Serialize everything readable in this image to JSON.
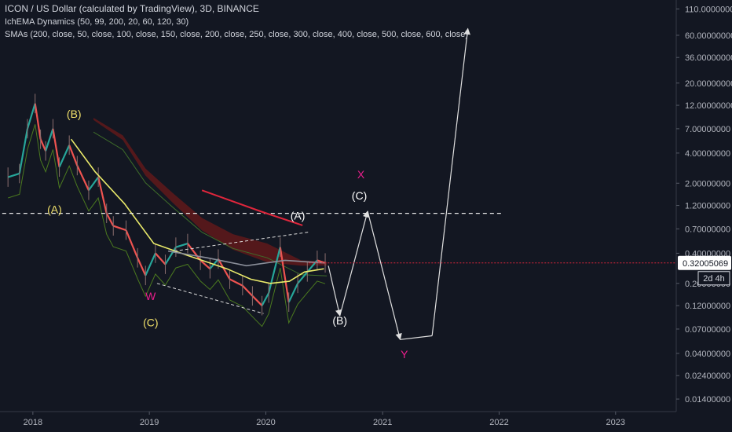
{
  "header": {
    "symbol_line": "ICON / US Dollar (calculated by TradingView), 3D, BINANCE",
    "indicator_1": "IchEMA Dynamics (50, 99, 200, 20, 60, 120, 30)",
    "indicator_2": "SMAs (200, close, 50, close, 100, close, 150, close, 200, close, 250, close, 300, close, 400, close, 500, close, 600, close)"
  },
  "price_tag": {
    "value": "0.32005069",
    "countdown": "2d 4h"
  },
  "colors": {
    "background": "#131722",
    "axis_text": "#b2b5be",
    "candle_up": "#26a69a",
    "candle_down": "#ef5350",
    "sma_yellow": "#e6e65a",
    "cloud_red": "#6b1a1a",
    "label_yellow": "#f0e06a",
    "label_magenta": "#e91e8c",
    "label_white": "#ffffff"
  },
  "chart_data": {
    "type": "line",
    "scale": "log",
    "ylim": [
      0.0105,
      135
    ],
    "xlim": [
      "2017-09-20",
      "2023-07-10"
    ],
    "y_ticks": [
      "0.01400000",
      "0.02400000",
      "0.04000000",
      "0.07000000",
      "0.12000000",
      "0.20000000",
      "0.40000000",
      "0.70000000",
      "1.20000000",
      "2.00000000",
      "4.00000000",
      "7.00000000",
      "12.00000000",
      "20.00000000",
      "36.00000000",
      "60.00000000",
      "110.00000000"
    ],
    "x_ticks": [
      "2018",
      "2019",
      "2020",
      "2021",
      "2022",
      "2023"
    ],
    "x_tick_dates": [
      "2018-01-01",
      "2019-01-01",
      "2020-01-01",
      "2021-01-01",
      "2022-01-01",
      "2023-01-01"
    ],
    "horizontal_level": {
      "value": 1.0,
      "x_from": "2017-09-27",
      "x_to": "2022-01-10",
      "style": "dashed"
    },
    "series": [
      {
        "color": "#eaea6a",
        "points": [
          [
            "2018-05-01",
            5.5
          ],
          [
            "2018-07-15",
            2.6
          ],
          [
            "2018-10-15",
            1.25
          ],
          [
            "2019-01-15",
            0.5
          ],
          [
            "2019-05-01",
            0.38
          ],
          [
            "2019-09-01",
            0.28
          ],
          [
            "2019-11-15",
            0.22
          ],
          [
            "2020-01-15",
            0.2
          ],
          [
            "2020-03-15",
            0.21
          ],
          [
            "2020-05-01",
            0.26
          ],
          [
            "2020-07-01",
            0.28
          ]
        ]
      },
      {
        "color": "#8a8e99",
        "points": [
          [
            "2019-03-01",
            0.42
          ],
          [
            "2019-07-01",
            0.36
          ],
          [
            "2019-11-01",
            0.3
          ],
          [
            "2020-03-01",
            0.34
          ],
          [
            "2020-07-01",
            0.32
          ]
        ]
      }
    ],
    "price_path": [
      [
        "2017-10-15",
        2.3
      ],
      [
        "2017-11-20",
        2.5
      ],
      [
        "2017-12-15",
        7
      ],
      [
        "2018-01-08",
        12.5
      ],
      [
        "2018-01-25",
        5.5
      ],
      [
        "2018-02-10",
        4.2
      ],
      [
        "2018-03-05",
        7
      ],
      [
        "2018-03-25",
        2.9
      ],
      [
        "2018-04-25",
        4.8
      ],
      [
        "2018-05-20",
        3.0
      ],
      [
        "2018-06-25",
        1.7
      ],
      [
        "2018-07-25",
        2.3
      ],
      [
        "2018-08-20",
        1.0
      ],
      [
        "2018-09-10",
        0.75
      ],
      [
        "2018-10-20",
        0.68
      ],
      [
        "2018-11-25",
        0.36
      ],
      [
        "2018-12-20",
        0.24
      ],
      [
        "2019-01-20",
        0.4
      ],
      [
        "2019-02-20",
        0.31
      ],
      [
        "2019-03-25",
        0.46
      ],
      [
        "2019-05-01",
        0.5
      ],
      [
        "2019-06-10",
        0.34
      ],
      [
        "2019-07-10",
        0.28
      ],
      [
        "2019-08-05",
        0.35
      ],
      [
        "2019-09-10",
        0.22
      ],
      [
        "2019-10-20",
        0.19
      ],
      [
        "2019-11-20",
        0.15
      ],
      [
        "2019-12-20",
        0.12
      ],
      [
        "2020-01-10",
        0.16
      ],
      [
        "2020-02-15",
        0.46
      ],
      [
        "2020-03-13",
        0.13
      ],
      [
        "2020-04-10",
        0.2
      ],
      [
        "2020-05-10",
        0.26
      ],
      [
        "2020-06-10",
        0.34
      ],
      [
        "2020-07-05",
        0.32
      ]
    ],
    "cloud": [
      [
        "2018-07-10",
        9
      ],
      [
        "2018-10-10",
        6
      ],
      [
        "2018-12-20",
        2.8
      ],
      [
        "2019-03-15",
        1.6
      ],
      [
        "2019-06-15",
        0.9
      ],
      [
        "2019-09-20",
        0.62
      ],
      [
        "2020-01-05",
        0.5
      ],
      [
        "2020-04-20",
        0.34
      ],
      [
        "2020-07-10",
        0.33
      ]
    ],
    "red_line": [
      [
        "2019-06-15",
        1.7
      ],
      [
        "2019-12-15",
        1.05
      ],
      [
        "2020-04-25",
        0.76
      ]
    ],
    "dashed_lines": [
      [
        [
          "2019-01-25",
          0.2
        ],
        [
          "2019-12-25",
          0.1
        ]
      ],
      [
        [
          "2019-03-20",
          0.42
        ],
        [
          "2020-05-15",
          0.65
        ]
      ]
    ],
    "projection": [
      [
        "2020-07-15",
        0.3
      ],
      [
        "2020-08-20",
        0.095
      ],
      [
        "2020-11-15",
        1.05
      ],
      [
        "2021-02-25",
        0.055
      ],
      [
        "2021-06-05",
        0.06
      ],
      [
        "2021-09-25",
        70
      ]
    ],
    "annotations": [
      {
        "text": "(B)",
        "date": "2018-05-10",
        "value": 9.0,
        "color": "#f0e06a"
      },
      {
        "text": "(A)",
        "date": "2018-03-10",
        "value": 1.0,
        "color": "#f0e06a"
      },
      {
        "text": "W",
        "date": "2019-01-05",
        "value": 0.136,
        "color": "#e91e8c"
      },
      {
        "text": "(C)",
        "date": "2019-01-05",
        "value": 0.0745,
        "color": "#f0e06a"
      },
      {
        "text": "(A)",
        "date": "2020-04-10",
        "value": 0.87,
        "color": "#ffffff"
      },
      {
        "text": "X",
        "date": "2020-10-25",
        "value": 2.25,
        "color": "#e91e8c"
      },
      {
        "text": "(C)",
        "date": "2020-10-20",
        "value": 1.38,
        "color": "#ffffff"
      },
      {
        "text": "(B)",
        "date": "2020-08-20",
        "value": 0.078,
        "color": "#ffffff"
      },
      {
        "text": "Y",
        "date": "2021-03-10",
        "value": 0.036,
        "color": "#e91e8c"
      }
    ]
  }
}
